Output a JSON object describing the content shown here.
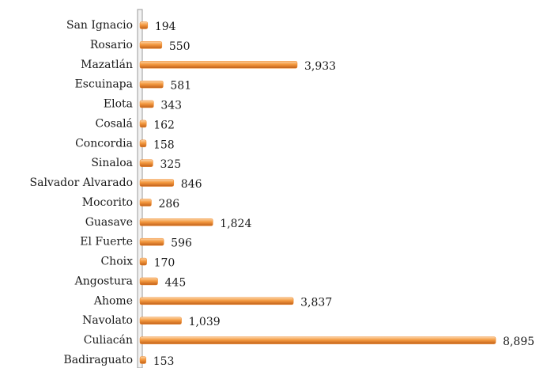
{
  "chart_data": {
    "type": "bar",
    "orientation": "horizontal",
    "categories": [
      "San Ignacio",
      "Rosario",
      "Mazatlán",
      "Escuinapa",
      "Elota",
      "Cosalá",
      "Concordia",
      "Sinaloa",
      "Salvador Alvarado",
      "Mocorito",
      "Guasave",
      "El Fuerte",
      "Choix",
      "Angostura",
      "Ahome",
      "Navolato",
      "Culiacán",
      "Badiraguato"
    ],
    "values": [
      194,
      550,
      3933,
      581,
      343,
      162,
      158,
      325,
      846,
      286,
      1824,
      596,
      170,
      445,
      3837,
      1039,
      8895,
      153
    ],
    "value_labels": [
      "194",
      "550",
      "3,933",
      "581",
      "343",
      "162",
      "158",
      "325",
      "846",
      "286",
      "1,824",
      "596",
      "170",
      "445",
      "3,837",
      "1,039",
      "8,895",
      "153"
    ],
    "color": "#f08a2c",
    "xlim": [
      0,
      10000
    ]
  }
}
